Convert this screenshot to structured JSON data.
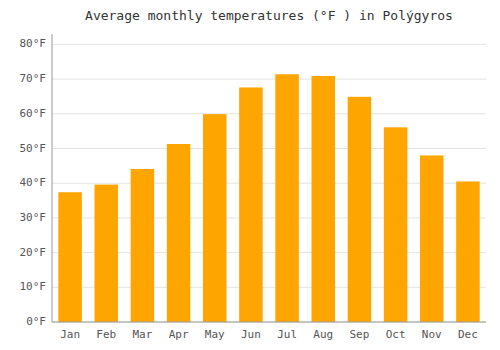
{
  "chart_data": {
    "type": "bar",
    "title": "Average monthly temperatures (°F ) in Polýgyros",
    "categories": [
      "Jan",
      "Feb",
      "Mar",
      "Apr",
      "May",
      "Jun",
      "Jul",
      "Aug",
      "Sep",
      "Oct",
      "Nov",
      "Dec"
    ],
    "values": [
      37.4,
      39.6,
      44.1,
      51.3,
      59.9,
      67.6,
      71.4,
      70.9,
      64.9,
      56.1,
      48.0,
      40.5
    ],
    "color": "#FFA500",
    "ylim": [
      0,
      83
    ],
    "yticks": [
      {
        "value": 0,
        "label": "0°F"
      },
      {
        "value": 10,
        "label": "10°F"
      },
      {
        "value": 20,
        "label": "20°F"
      },
      {
        "value": 30,
        "label": "30°F"
      },
      {
        "value": 40,
        "label": "40°F"
      },
      {
        "value": 50,
        "label": "50°F"
      },
      {
        "value": 60,
        "label": "60°F"
      },
      {
        "value": 70,
        "label": "70°F"
      },
      {
        "value": 80,
        "label": "80°F"
      }
    ],
    "grid": true
  }
}
